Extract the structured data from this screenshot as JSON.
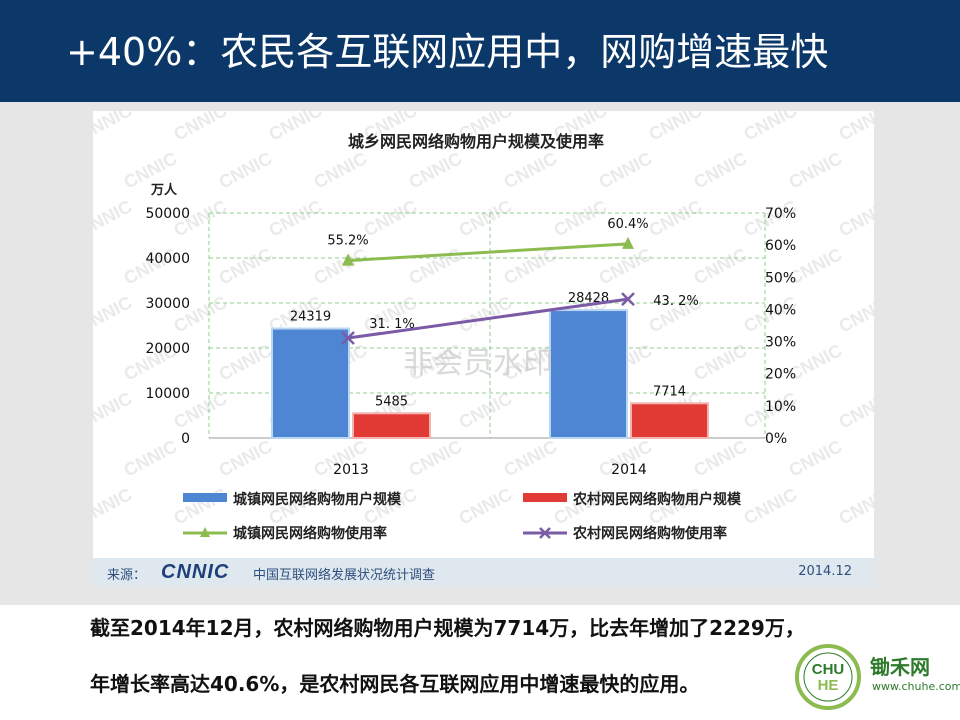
{
  "slide": {
    "title": "+40%：农民各互联网应用中，网购增速最快",
    "caption_line1": "截至2014年12月，农村网络购物用户规模为7714万，比去年增加了2229万，",
    "caption_line2": "年增长率高达40.6%，是农村网民各互联网应用中增速最快的应用。"
  },
  "chart_data": {
    "type": "bar",
    "title": "城乡网民网络购物用户规模及使用率",
    "y_left_unit": "万人",
    "y_left_ticks": [
      "0",
      "10000",
      "20000",
      "30000",
      "40000",
      "50000"
    ],
    "ylim_left": [
      0,
      50000
    ],
    "y_right_ticks": [
      "0%",
      "10%",
      "20%",
      "30%",
      "40%",
      "50%",
      "60%",
      "70%"
    ],
    "ylim_right": [
      0,
      70
    ],
    "categories": [
      "2013",
      "2014"
    ],
    "series": [
      {
        "name": "城镇网民网络购物用户规模",
        "kind": "bar",
        "color": "#4f86d3",
        "values": [
          24319,
          28428
        ],
        "labels": [
          "24319",
          "28428"
        ]
      },
      {
        "name": "农村网民网络购物用户规模",
        "kind": "bar",
        "color": "#e23a35",
        "values": [
          5485,
          7714
        ],
        "labels": [
          "5485",
          "7714"
        ]
      },
      {
        "name": "城镇网民网络购物使用率",
        "kind": "line",
        "marker": "triangle",
        "color": "#8cbb4f",
        "values": [
          55.2,
          60.4
        ],
        "labels": [
          "55.2%",
          "60.4%"
        ]
      },
      {
        "name": "农村网民网络购物使用率",
        "kind": "line",
        "marker": "x",
        "color": "#7b5aa6",
        "values": [
          31.1,
          43.2
        ],
        "labels": [
          "31. 1%",
          "43. 2%"
        ]
      }
    ],
    "grid": true,
    "legend": "bottom",
    "watermark_text": "非会员水印",
    "watermark_brand": "CNNIC"
  },
  "source": {
    "label": "来源：",
    "brand": "CNNIC",
    "name": "中国互联网络发展状况统计调查",
    "date": "2014.12"
  },
  "site_logo": {
    "name": "锄禾网",
    "url": "www.chuhe.com",
    "colors": {
      "green": "#2d7a2a",
      "ring": "#8cbb4f"
    }
  }
}
